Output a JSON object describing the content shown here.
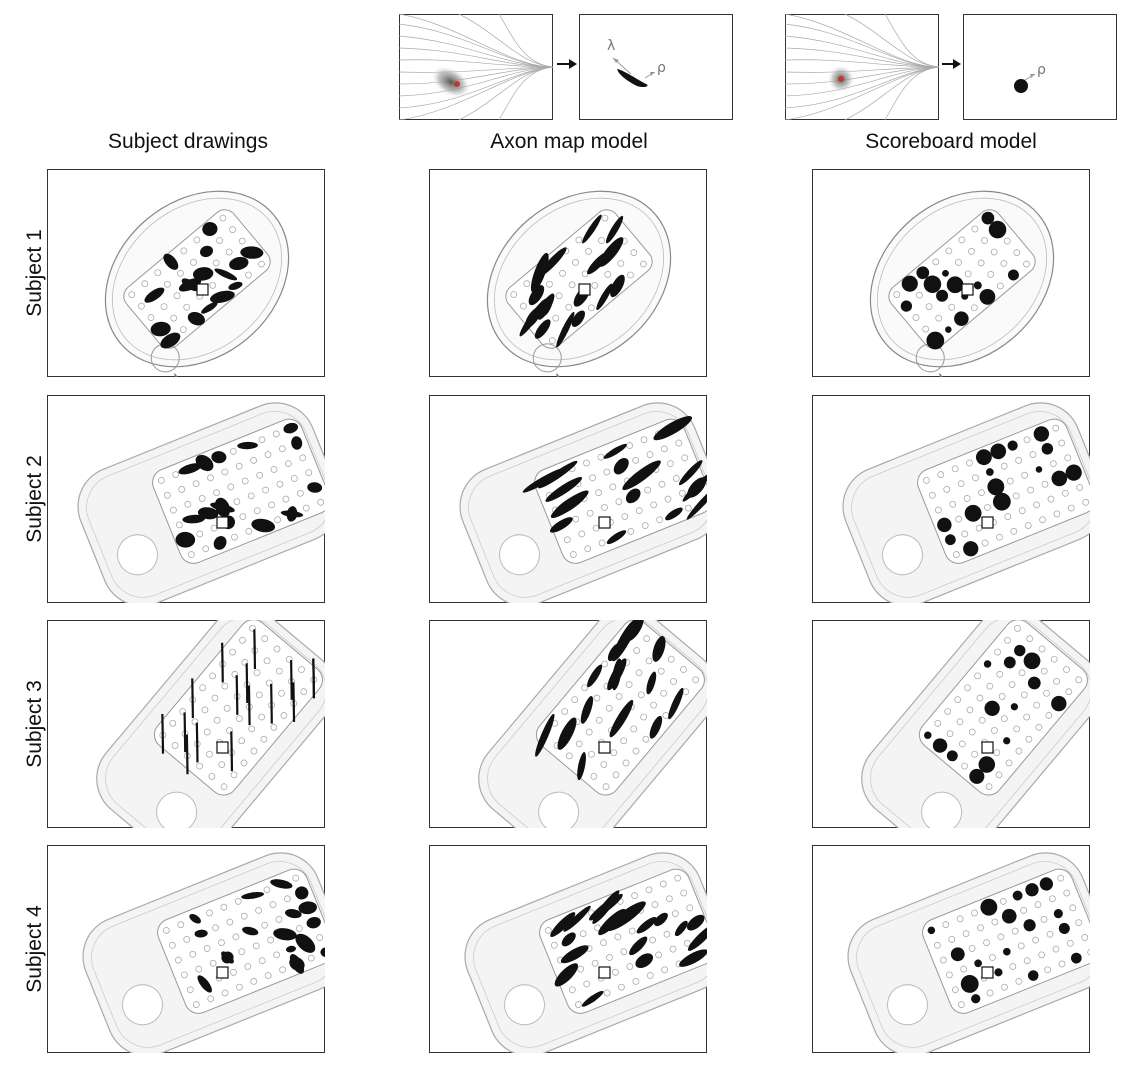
{
  "figure": {
    "columns": [
      "Subject drawings",
      "Axon map model",
      "Scoreboard model"
    ],
    "rows": [
      "Subject 1",
      "Subject 2",
      "Subject 3",
      "Subject 4"
    ],
    "insets": {
      "axon_map": {
        "symbols": [
          "λ",
          "ρ"
        ]
      },
      "scoreboard": {
        "symbols": [
          "ρ"
        ]
      }
    }
  }
}
